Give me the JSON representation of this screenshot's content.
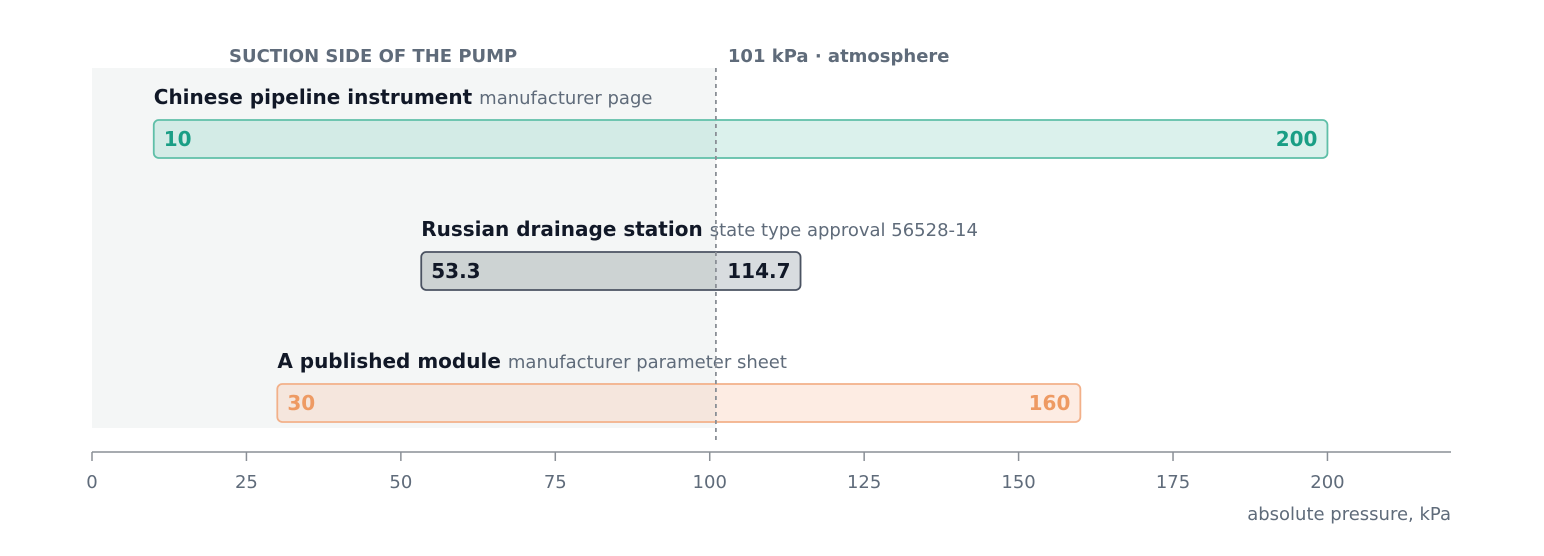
{
  "chart_data": {
    "type": "bar",
    "orientation": "horizontal-range",
    "xlabel": "absolute pressure, kPa",
    "xlim": [
      0,
      220
    ],
    "xticks": [
      0,
      25,
      50,
      75,
      100,
      125,
      150,
      175,
      200
    ],
    "grid": false,
    "shaded_region": {
      "from": 0,
      "to": 101,
      "label": "SUCTION SIDE OF THE PUMP",
      "color": "#f4f6f6"
    },
    "reference_line": {
      "value": 101,
      "label": "101 kPa · atmosphere",
      "color": "#8a8f96"
    },
    "series": [
      {
        "name": "Chinese pipeline instrument",
        "source": "manufacturer page",
        "min": 10,
        "max": 200,
        "min_label": "10",
        "max_label": "200",
        "fill": "#dbf1ec",
        "fill_suction": "#d3ebe6",
        "stroke": "#5fbfa8",
        "text_color": "#1a9e85"
      },
      {
        "name": "Russian drainage station",
        "source": "state type approval 56528-14",
        "min": 53.3,
        "max": 114.7,
        "min_label": "53.3",
        "max_label": "114.7",
        "fill": "#d8dcdf",
        "fill_suction": "#cdd3d3",
        "stroke": "#4a5261",
        "text_color": "#111827"
      },
      {
        "name": "A published module",
        "source": "manufacturer parameter sheet",
        "min": 30,
        "max": 160,
        "min_label": "30",
        "max_label": "160",
        "fill": "#fdece3",
        "fill_suction": "#f5e6dd",
        "stroke": "#f2b089",
        "text_color": "#ee9a63"
      }
    ]
  }
}
